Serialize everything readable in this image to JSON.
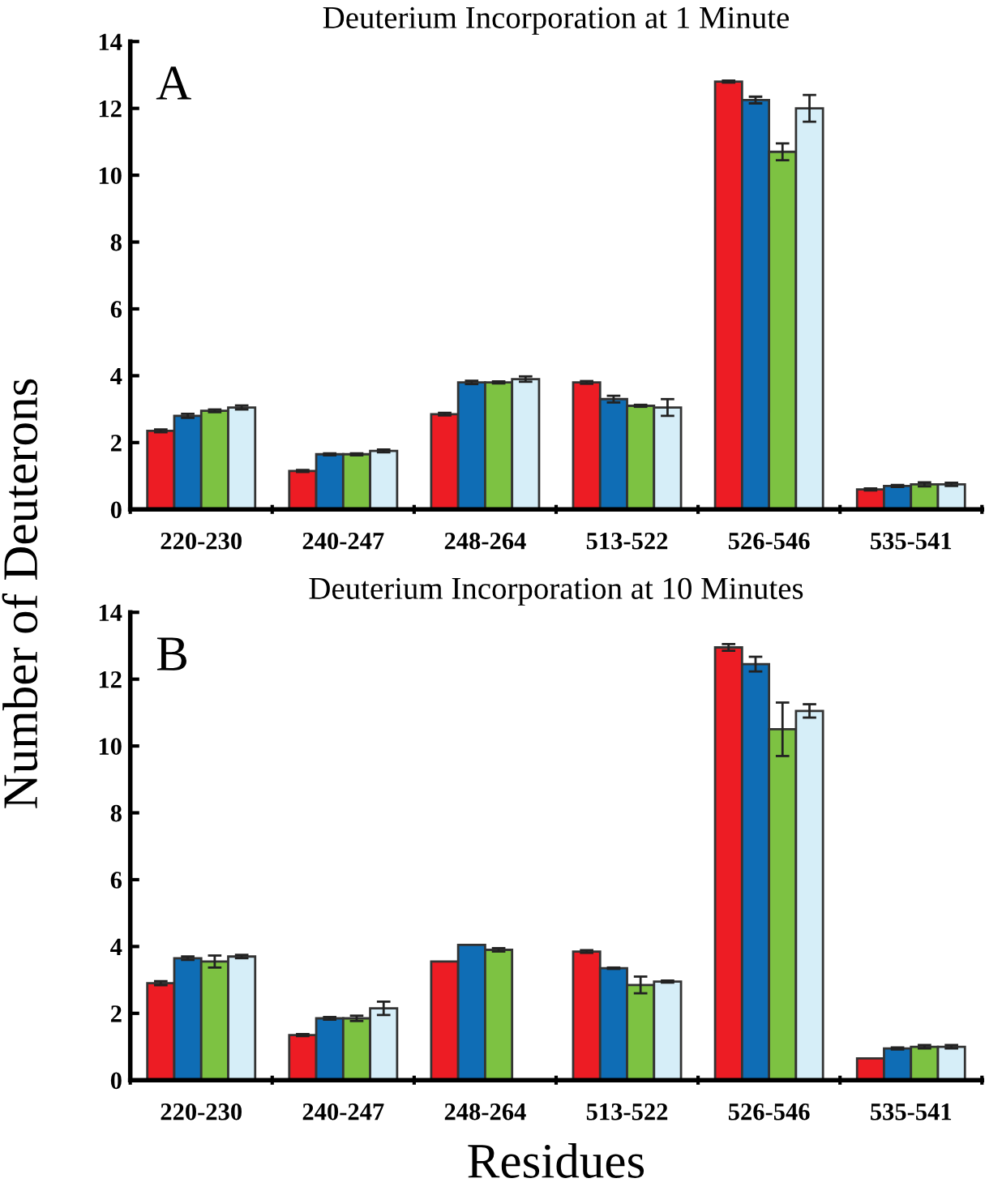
{
  "chart_data": [
    {
      "type": "bar",
      "title": "Deuterium Incorporation at 1 Minute",
      "ylabel": "Number of Deuterons",
      "annotations": [
        "A"
      ],
      "categories": [
        "220-230",
        "240-247",
        "248-264",
        "513-522",
        "526-546",
        "535-541"
      ],
      "ylim": [
        0,
        14
      ],
      "yticks": [
        0,
        2,
        4,
        6,
        8,
        10,
        12,
        14
      ],
      "grid": false,
      "legend": false,
      "series": [
        {
          "color": "#ed1c24",
          "values": [
            2.35,
            1.15,
            2.85,
            3.8,
            12.8,
            0.6
          ],
          "errors": [
            0.04,
            0.03,
            0.04,
            0.04,
            0.03,
            0.03
          ]
        },
        {
          "color": "#0f6db5",
          "values": [
            2.8,
            1.65,
            3.8,
            3.3,
            12.25,
            0.7
          ],
          "errors": [
            0.06,
            0.03,
            0.05,
            0.1,
            0.1,
            0.03
          ]
        },
        {
          "color": "#7dc242",
          "values": [
            2.95,
            1.65,
            3.8,
            3.1,
            10.7,
            0.75
          ],
          "errors": [
            0.04,
            0.03,
            0.03,
            0.03,
            0.25,
            0.06
          ]
        },
        {
          "color": "#d6eef8",
          "values": [
            3.05,
            1.75,
            3.9,
            3.05,
            12.0,
            0.75
          ],
          "errors": [
            0.06,
            0.04,
            0.08,
            0.25,
            0.4,
            0.05
          ]
        }
      ]
    },
    {
      "type": "bar",
      "title": "Deuterium Incorporation at 10 Minutes",
      "xlabel": "Residues",
      "annotations": [
        "B"
      ],
      "categories": [
        "220-230",
        "240-247",
        "248-264",
        "513-522",
        "526-546",
        "535-541"
      ],
      "ylim": [
        0,
        14
      ],
      "yticks": [
        0,
        2,
        4,
        6,
        8,
        10,
        12,
        14
      ],
      "grid": false,
      "legend": false,
      "series": [
        {
          "color": "#ed1c24",
          "values": [
            2.9,
            1.35,
            3.55,
            3.85,
            12.95,
            0.65
          ],
          "errors": [
            0.06,
            0.03,
            null,
            0.04,
            0.1,
            null
          ]
        },
        {
          "color": "#0f6db5",
          "values": [
            3.65,
            1.85,
            4.05,
            3.35,
            12.45,
            0.95
          ],
          "errors": [
            0.05,
            0.04,
            null,
            0.02,
            0.22,
            0.03
          ]
        },
        {
          "color": "#7dc242",
          "values": [
            3.55,
            1.85,
            3.9,
            2.85,
            10.5,
            1.0
          ],
          "errors": [
            0.18,
            0.08,
            0.05,
            0.25,
            0.8,
            0.05
          ]
        },
        {
          "color": "#d6eef8",
          "values": [
            3.7,
            2.15,
            null,
            2.95,
            11.05,
            1.0
          ],
          "errors": [
            0.05,
            0.2,
            null,
            0.03,
            0.2,
            0.05
          ]
        }
      ]
    }
  ]
}
